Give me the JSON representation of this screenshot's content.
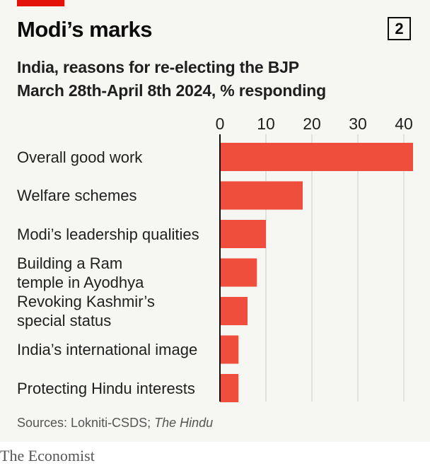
{
  "header": {
    "title": "Modi’s marks",
    "badge": "2"
  },
  "subtitle": {
    "line1": "India, reasons for re-electing the BJP",
    "line2": "March 28th-April 8th 2024, % responding"
  },
  "chart_data": {
    "type": "bar",
    "orientation": "horizontal",
    "categories": [
      [
        "Overall good work"
      ],
      [
        "Welfare schemes"
      ],
      [
        "Modi’s leadership qualities"
      ],
      [
        "Building a Ram",
        "temple in Ayodhya"
      ],
      [
        "Revoking Kashmir’s",
        "special status"
      ],
      [
        "India’s international image"
      ],
      [
        "Protecting Hindu interests"
      ]
    ],
    "values": [
      42,
      18,
      10,
      8,
      6,
      4,
      4
    ],
    "xticks": [
      0,
      10,
      20,
      30,
      40
    ],
    "xlim": [
      0,
      42
    ],
    "unit": "% responding",
    "bar_color": "#f04e3c",
    "grid": true
  },
  "footer": {
    "source_prefix": "Sources: Lokniti-CSDS; ",
    "source_italic": "The Hindu",
    "brand": "The Economist"
  },
  "colors": {
    "accent": "#e3120b",
    "background": "#f6f6f3"
  }
}
